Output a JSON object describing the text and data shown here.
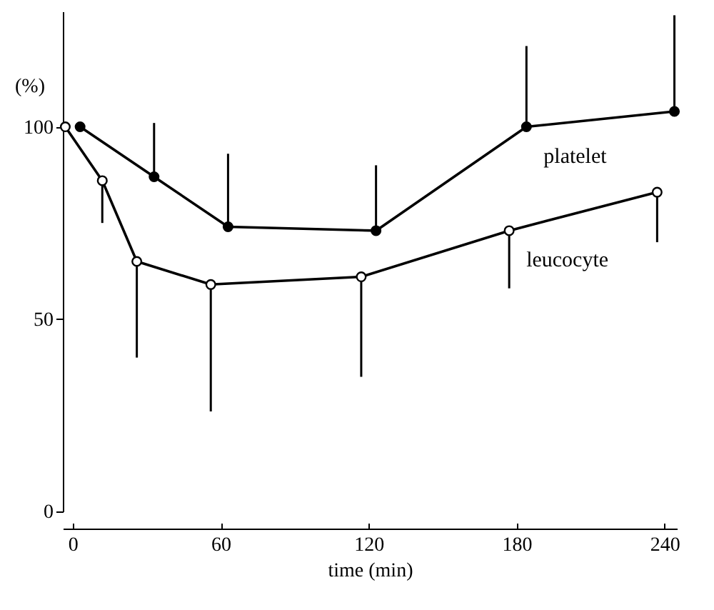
{
  "chart_data": {
    "type": "line",
    "xlabel": "time (min)",
    "ylabel": "(%)",
    "xlim": [
      -4,
      245
    ],
    "xticks": [
      0,
      60,
      120,
      180,
      240
    ],
    "ylim": [
      0,
      130
    ],
    "yticks": [
      0,
      50,
      100
    ],
    "grid": false,
    "legend": false,
    "marker": "circle",
    "line_style": "solid",
    "series": [
      {
        "name": "platelet",
        "color": "#000000",
        "x": [
          3,
          33,
          63,
          123,
          184,
          244
        ],
        "values": [
          100,
          87,
          74,
          73,
          100,
          104
        ],
        "errors": [
          null,
          [
            87,
            101
          ],
          [
            74,
            93
          ],
          [
            73,
            90
          ],
          [
            100,
            121
          ],
          [
            104,
            129
          ]
        ]
      },
      {
        "name": "leucocyte",
        "color": "#000000",
        "x": [
          -3,
          12,
          26,
          56,
          117,
          177,
          237
        ],
        "values": [
          100,
          86,
          65,
          59,
          61,
          73,
          83
        ],
        "errors": [
          null,
          [
            75,
            86
          ],
          [
            40,
            65
          ],
          [
            26,
            59
          ],
          [
            35,
            61
          ],
          [
            58,
            73
          ],
          [
            70,
            83
          ]
        ]
      }
    ]
  }
}
